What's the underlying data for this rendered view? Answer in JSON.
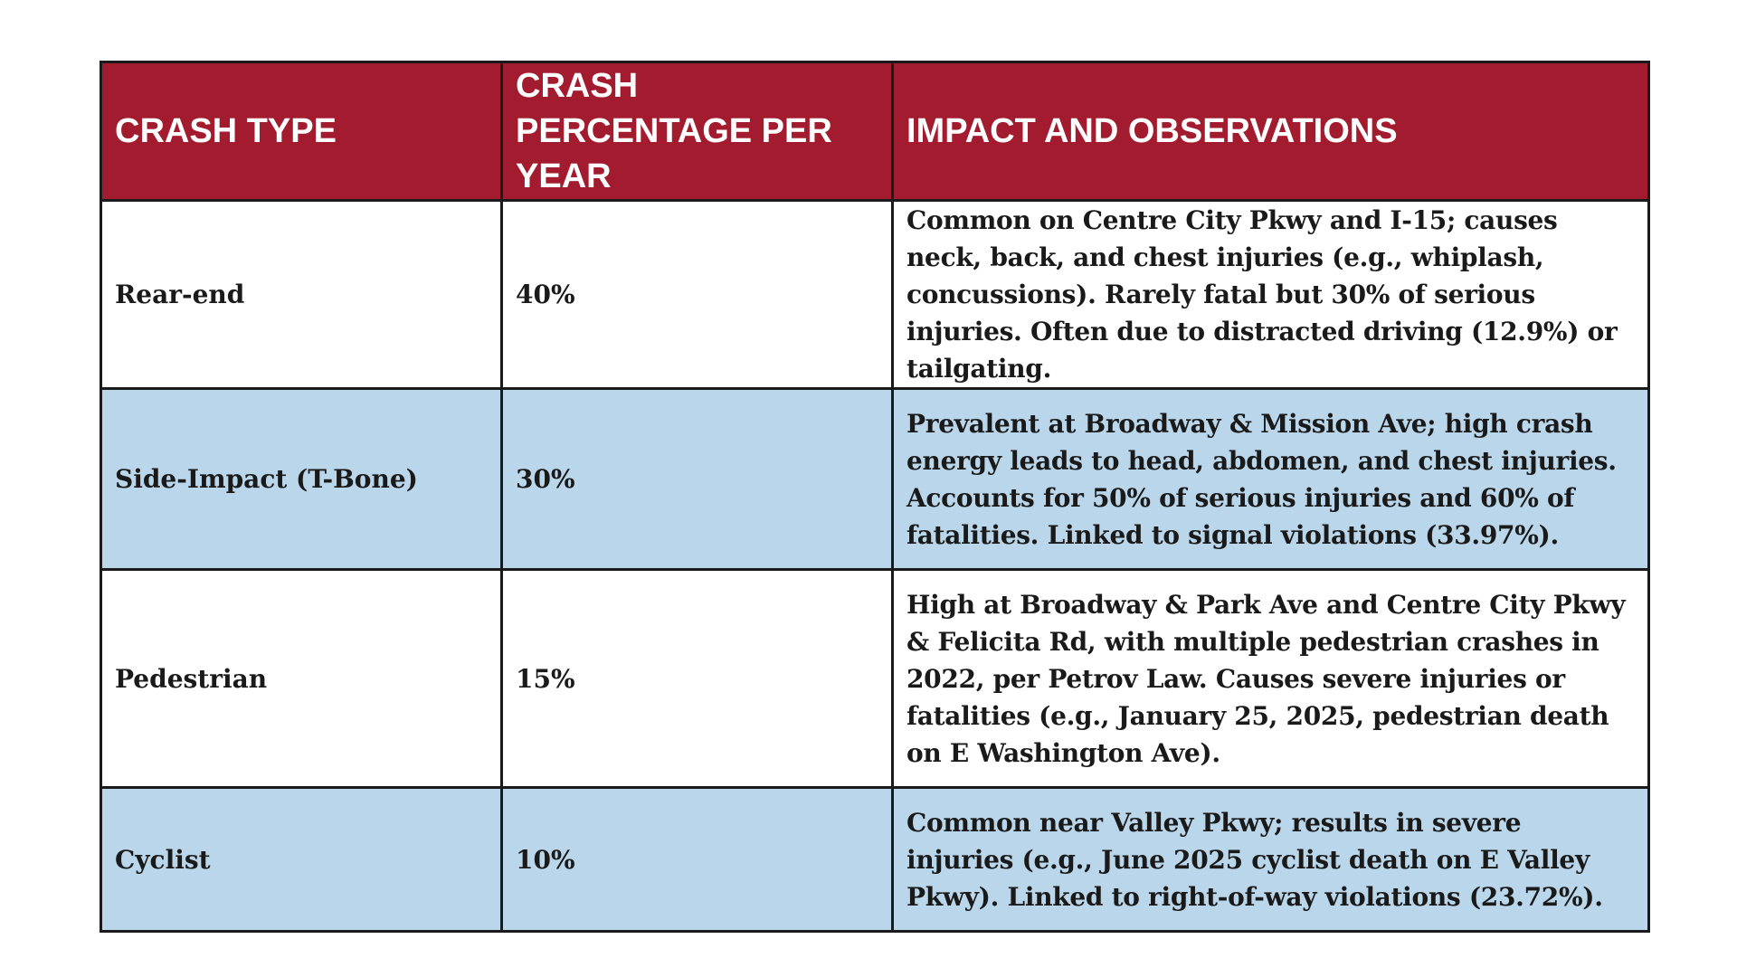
{
  "table": {
    "headers": {
      "crash_type": "CRASH TYPE",
      "percentage": "CRASH PERCENTAGE PER YEAR",
      "impact": "IMPACT AND OBSERVATIONS"
    },
    "rows": [
      {
        "crash_type": "Rear-end",
        "percentage": "40%",
        "impact": "Common on Centre City Pkwy and I-15; causes neck, back, and chest injuries (e.g., whiplash, concussions). Rarely fatal but 30% of serious injuries. Often due to distracted driving (12.9%) or tailgating."
      },
      {
        "crash_type": "Side-Impact (T-Bone)",
        "percentage": "30%",
        "impact": "Prevalent at Broadway & Mission Ave; high crash energy leads to head, abdomen, and chest injuries. Accounts for 50% of serious injuries and 60% of fatalities. Linked to signal violations (33.97%)."
      },
      {
        "crash_type": "Pedestrian",
        "percentage": "15%",
        "impact": "High at Broadway & Park Ave and Centre City Pkwy & Felicita Rd, with multiple pedestrian crashes in 2022, per Petrov Law. Causes severe injuries or fatalities (e.g., January 25, 2025, pedestrian death on E Washington Ave)."
      },
      {
        "crash_type": "Cyclist",
        "percentage": "10%",
        "impact": "Common near Valley Pkwy; results in severe injuries (e.g., June 2025 cyclist death on E Valley Pkwy). Linked to right-of-way violations (23.72%)."
      }
    ]
  },
  "colors": {
    "header_bg": "#a31b2e",
    "header_text": "#ffffff",
    "row_alt_bg": "#bad6ea",
    "border": "#1a1a1a"
  }
}
